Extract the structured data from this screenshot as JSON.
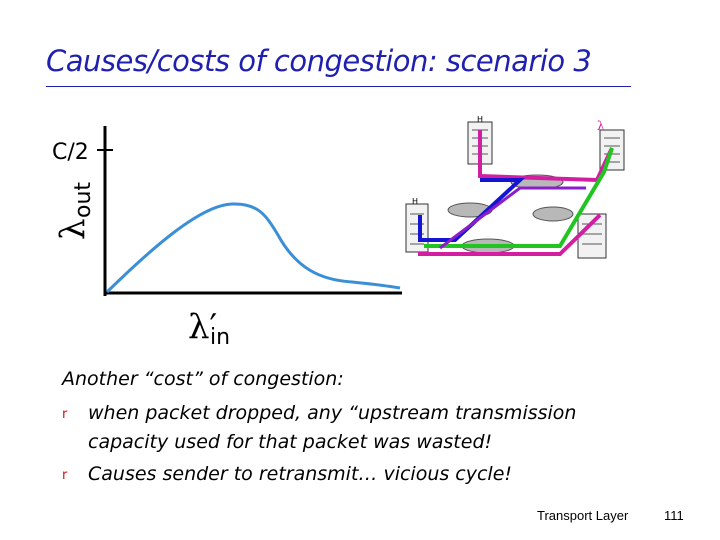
{
  "slide": {
    "title": "Causes/costs of congestion: scenario 3",
    "title_color": "#1f1fb0"
  },
  "graph": {
    "y_tick_label": "C/2",
    "y_axis_symbol": "λ",
    "y_axis_subscript": "out",
    "x_axis_symbol": "λ′",
    "x_axis_subscript": "in",
    "curve_color": "#3a8fd6"
  },
  "network_diagram": {
    "lambda_label": "λ",
    "path_colors": [
      "#d21ea0",
      "#1414d2",
      "#22c422",
      "#8a1ec8"
    ]
  },
  "body": {
    "heading": "Another “cost” of congestion:",
    "bullets": [
      "when packet dropped, any “upstream transmission capacity used for that packet was wasted!",
      "Causes sender to retransmit… vicious cycle!"
    ],
    "bullet_line1_a": "when packet dropped, any “upstream transmission",
    "bullet_line1_b": "capacity used for that packet was wasted!",
    "bullet_line2": "Causes sender to retransmit… vicious cycle!",
    "bullet_glyph": "r"
  },
  "footer": {
    "section": "Transport Layer",
    "page_number": "111"
  }
}
